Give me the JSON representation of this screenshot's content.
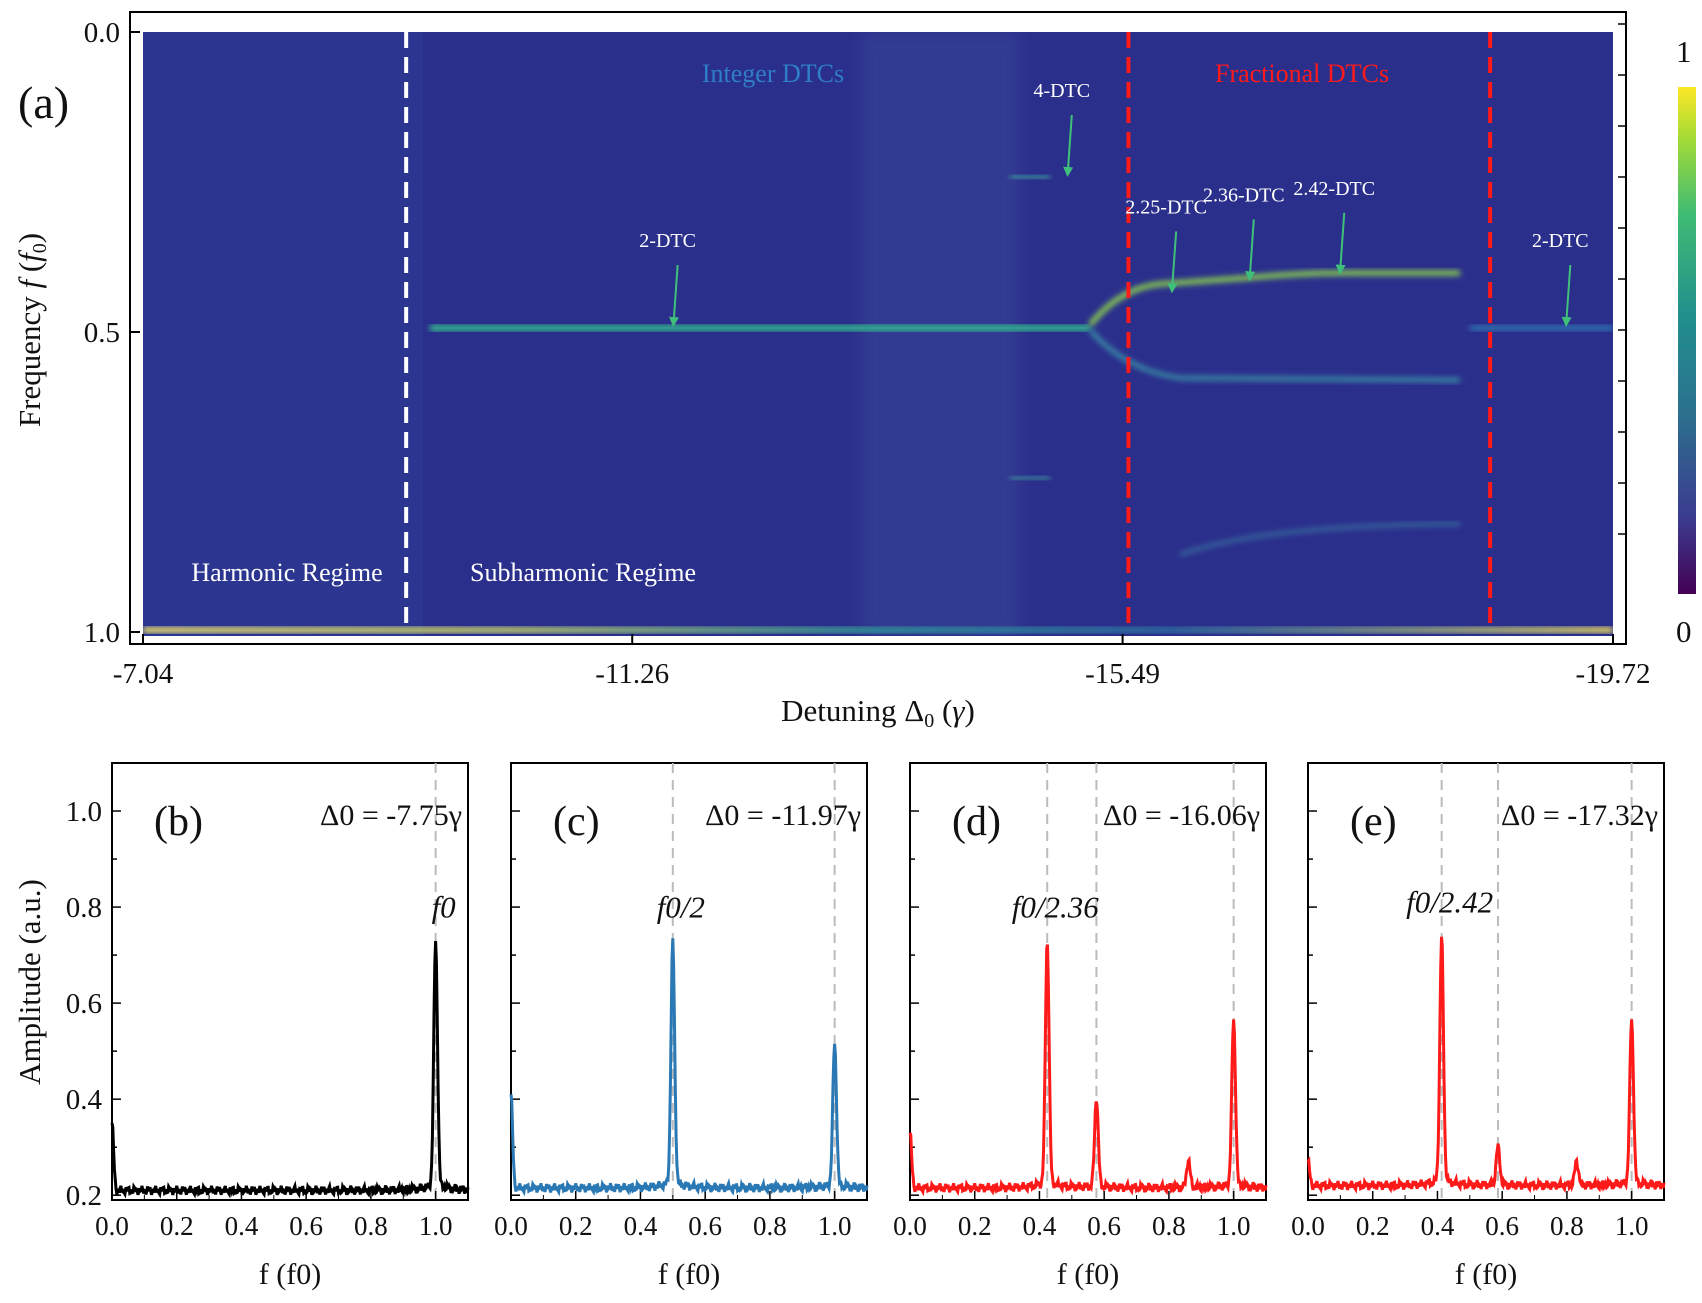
{
  "colors": {
    "heat_low": "#2b2f8c",
    "heat_mid": "#2db48a",
    "heat_high": "#f5e85a",
    "integer_label": "#2e7fc7",
    "fractional_label": "#ff1a1a",
    "white_text": "#ffffff",
    "arrow": "#3fc07a",
    "series_b": "#000000",
    "series_c": "#2a78b4",
    "series_d": "#ff1a1a",
    "series_e": "#ff1a1a"
  },
  "chart_data": [
    {
      "panel": "(a)",
      "type": "heatmap",
      "xlabel": "Detuning Δ0 (γ)",
      "ylabel": "Frequency f (f0)",
      "x_ticks": [
        "-7.04",
        "-11.26",
        "-15.49",
        "-19.72"
      ],
      "x_range": [
        -7.04,
        -19.72
      ],
      "y_ticks": [
        "0.0",
        "0.5",
        "1.0"
      ],
      "y_range": [
        0.0,
        1.0
      ],
      "colorbar": {
        "min_label": "0",
        "max_label": "1",
        "range": [
          0,
          1
        ]
      },
      "regime_boundaries": [
        {
          "x": -9.31,
          "style": "white-dashed"
        },
        {
          "x": -15.54,
          "style": "red-dashed"
        },
        {
          "x": -18.66,
          "style": "red-dashed"
        }
      ],
      "region_labels": {
        "integer": "Integer DTCs",
        "fractional": "Fractional DTCs",
        "harmonic": "Harmonic Regime",
        "subharmonic": "Subharmonic Regime"
      },
      "annotations": [
        {
          "text": "2-DTC",
          "x": -11.6,
          "y": 0.5
        },
        {
          "text": "4-DTC",
          "x": -15.0,
          "y": 0.25
        },
        {
          "text": "2.25-DTC",
          "x": -15.9,
          "y": 0.444
        },
        {
          "text": "2.36-DTC",
          "x": -16.57,
          "y": 0.424
        },
        {
          "text": "2.42-DTC",
          "x": -17.35,
          "y": 0.413
        },
        {
          "text": "2-DTC",
          "x": -19.3,
          "y": 0.5
        }
      ]
    },
    {
      "panel": "(b)",
      "type": "line",
      "delta_label": "Δ0 = -7.75γ",
      "peak_label": "f0",
      "xlabel": "f (f0)",
      "ylabel": "Amplitude (a.u.)",
      "x_ticks": [
        "0.0",
        "0.2",
        "0.4",
        "0.6",
        "0.8",
        "1.0"
      ],
      "y_ticks": [
        "0.2",
        "0.4",
        "0.6",
        "0.8",
        "1.0"
      ],
      "xlim": [
        0,
        1.1
      ],
      "ylim": [
        0.19,
        1.1
      ],
      "ref_lines": [
        1.0
      ],
      "peaks": [
        {
          "x": 0.0,
          "y": 0.35
        },
        {
          "x": 1.0,
          "y": 0.72
        }
      ],
      "baseline": 0.21
    },
    {
      "panel": "(c)",
      "type": "line",
      "delta_label": "Δ0 = -11.97γ",
      "peak_label": "f0/2",
      "xlabel": "f (f0)",
      "x_ticks": [
        "0.0",
        "0.2",
        "0.4",
        "0.6",
        "0.8",
        "1.0"
      ],
      "xlim": [
        0,
        1.1
      ],
      "ylim": [
        0.19,
        1.1
      ],
      "ref_lines": [
        0.5,
        1.0
      ],
      "peaks": [
        {
          "x": 0.0,
          "y": 0.41
        },
        {
          "x": 0.5,
          "y": 0.72
        },
        {
          "x": 1.0,
          "y": 0.51
        }
      ],
      "baseline": 0.215
    },
    {
      "panel": "(d)",
      "type": "line",
      "delta_label": "Δ0 = -16.06γ",
      "peak_label": "f0/2.36",
      "xlabel": "f (f0)",
      "x_ticks": [
        "0.0",
        "0.2",
        "0.4",
        "0.6",
        "0.8",
        "1.0"
      ],
      "xlim": [
        0,
        1.1
      ],
      "ylim": [
        0.19,
        1.1
      ],
      "ref_lines": [
        0.424,
        0.576,
        1.0
      ],
      "peaks": [
        {
          "x": 0.0,
          "y": 0.33
        },
        {
          "x": 0.424,
          "y": 0.72
        },
        {
          "x": 0.576,
          "y": 0.4
        },
        {
          "x": 0.86,
          "y": 0.27
        },
        {
          "x": 1.0,
          "y": 0.56
        }
      ],
      "baseline": 0.215
    },
    {
      "panel": "(e)",
      "type": "line",
      "delta_label": "Δ0 = -17.32γ",
      "peak_label": "f0/2.42",
      "xlabel": "f (f0)",
      "x_ticks": [
        "0.0",
        "0.2",
        "0.4",
        "0.6",
        "0.8",
        "1.0"
      ],
      "xlim": [
        0,
        1.1
      ],
      "ylim": [
        0.19,
        1.1
      ],
      "ref_lines": [
        0.413,
        0.587,
        1.0
      ],
      "peaks": [
        {
          "x": 0.0,
          "y": 0.27
        },
        {
          "x": 0.413,
          "y": 0.73
        },
        {
          "x": 0.587,
          "y": 0.3
        },
        {
          "x": 0.83,
          "y": 0.27
        },
        {
          "x": 1.0,
          "y": 0.56
        }
      ],
      "baseline": 0.22
    }
  ]
}
